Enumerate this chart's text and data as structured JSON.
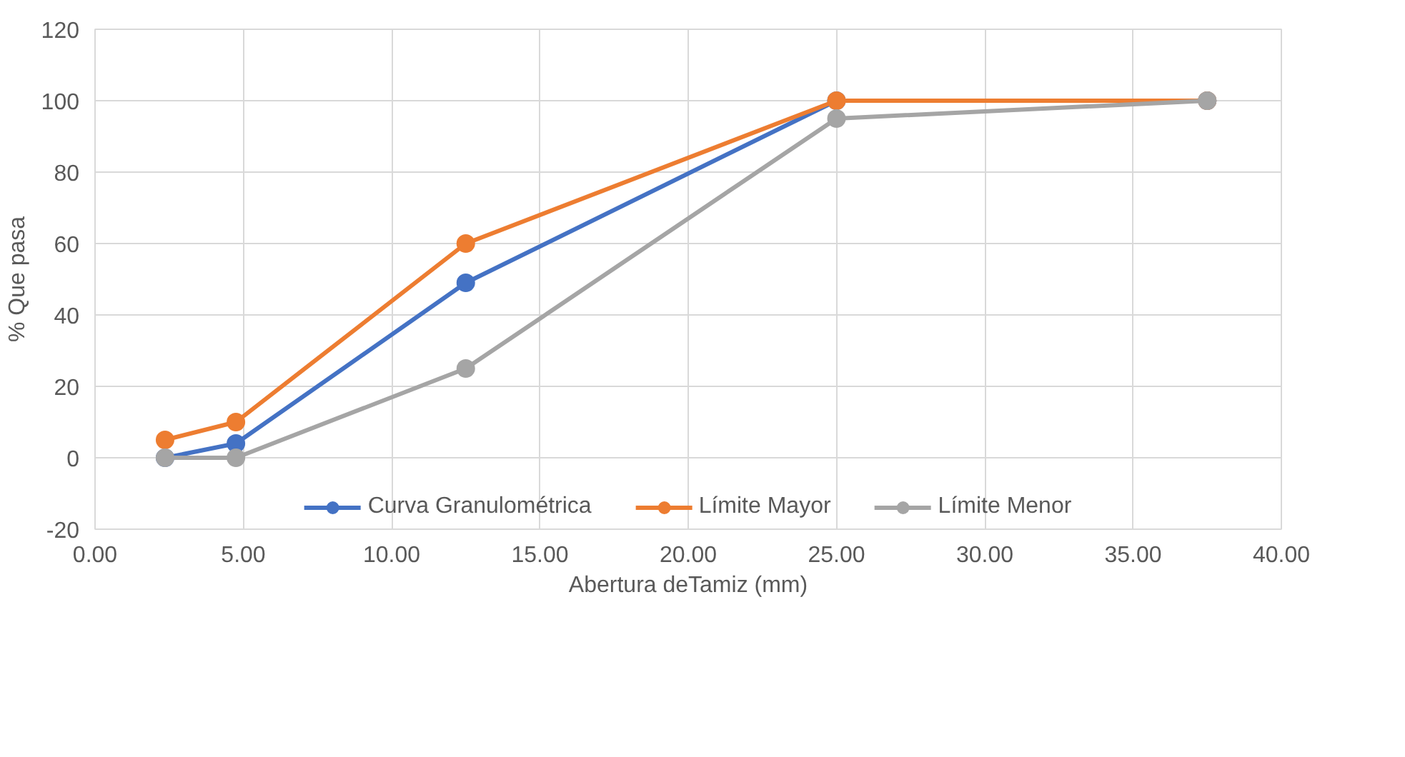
{
  "chart_data": {
    "type": "line",
    "xlabel": "Abertura deTamiz (mm)",
    "ylabel": "% Que pasa",
    "x": [
      2.36,
      4.75,
      12.5,
      25,
      37.5
    ],
    "series": [
      {
        "name": "Curva Granulométrica",
        "color": "#4472c4",
        "values": [
          0,
          4,
          49,
          100,
          100
        ]
      },
      {
        "name": "Límite Mayor",
        "color": "#ed7d31",
        "values": [
          5,
          10,
          60,
          100,
          100
        ]
      },
      {
        "name": "Límite Menor",
        "color": "#a5a5a5",
        "values": [
          0,
          0,
          25,
          95,
          100
        ]
      }
    ],
    "xlim": [
      0,
      40
    ],
    "ylim": [
      -20,
      120
    ],
    "xticks": [
      {
        "value": 0,
        "label": "0.00"
      },
      {
        "value": 5,
        "label": "5.00"
      },
      {
        "value": 10,
        "label": "10.00"
      },
      {
        "value": 15,
        "label": "15.00"
      },
      {
        "value": 20,
        "label": "20.00"
      },
      {
        "value": 25,
        "label": "25.00"
      },
      {
        "value": 30,
        "label": "30.00"
      },
      {
        "value": 35,
        "label": "35.00"
      },
      {
        "value": 40,
        "label": "40.00"
      }
    ],
    "yticks": [
      -20,
      0,
      20,
      40,
      60,
      80,
      100,
      120
    ],
    "grid": true,
    "legend": "bottom",
    "marker": "circle",
    "line_style": "solid"
  }
}
